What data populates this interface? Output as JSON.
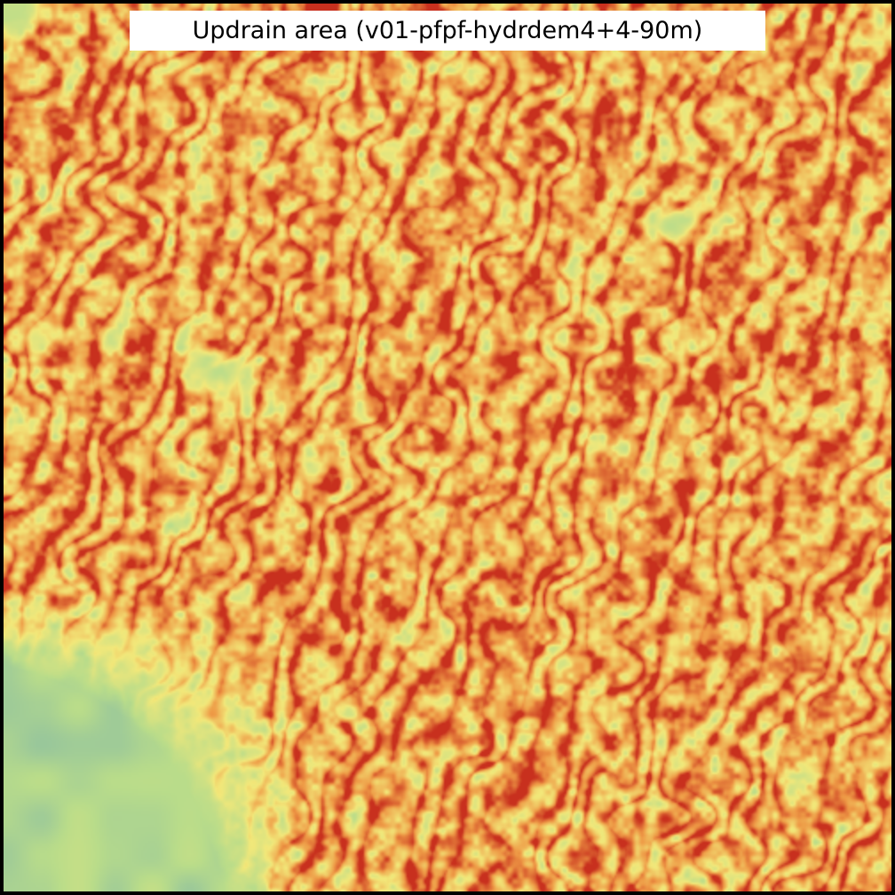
{
  "map": {
    "title": "Updrain area (v01-pfpf-hydrdem4+4-90m)",
    "color_ramp": {
      "low": "#7fb6a8",
      "mid_low": "#b9dc8a",
      "mid": "#f2e87a",
      "mid_high": "#ee9a46",
      "high": "#c8301e"
    },
    "frame_color": "#000000",
    "title_background": "#ffffff"
  }
}
